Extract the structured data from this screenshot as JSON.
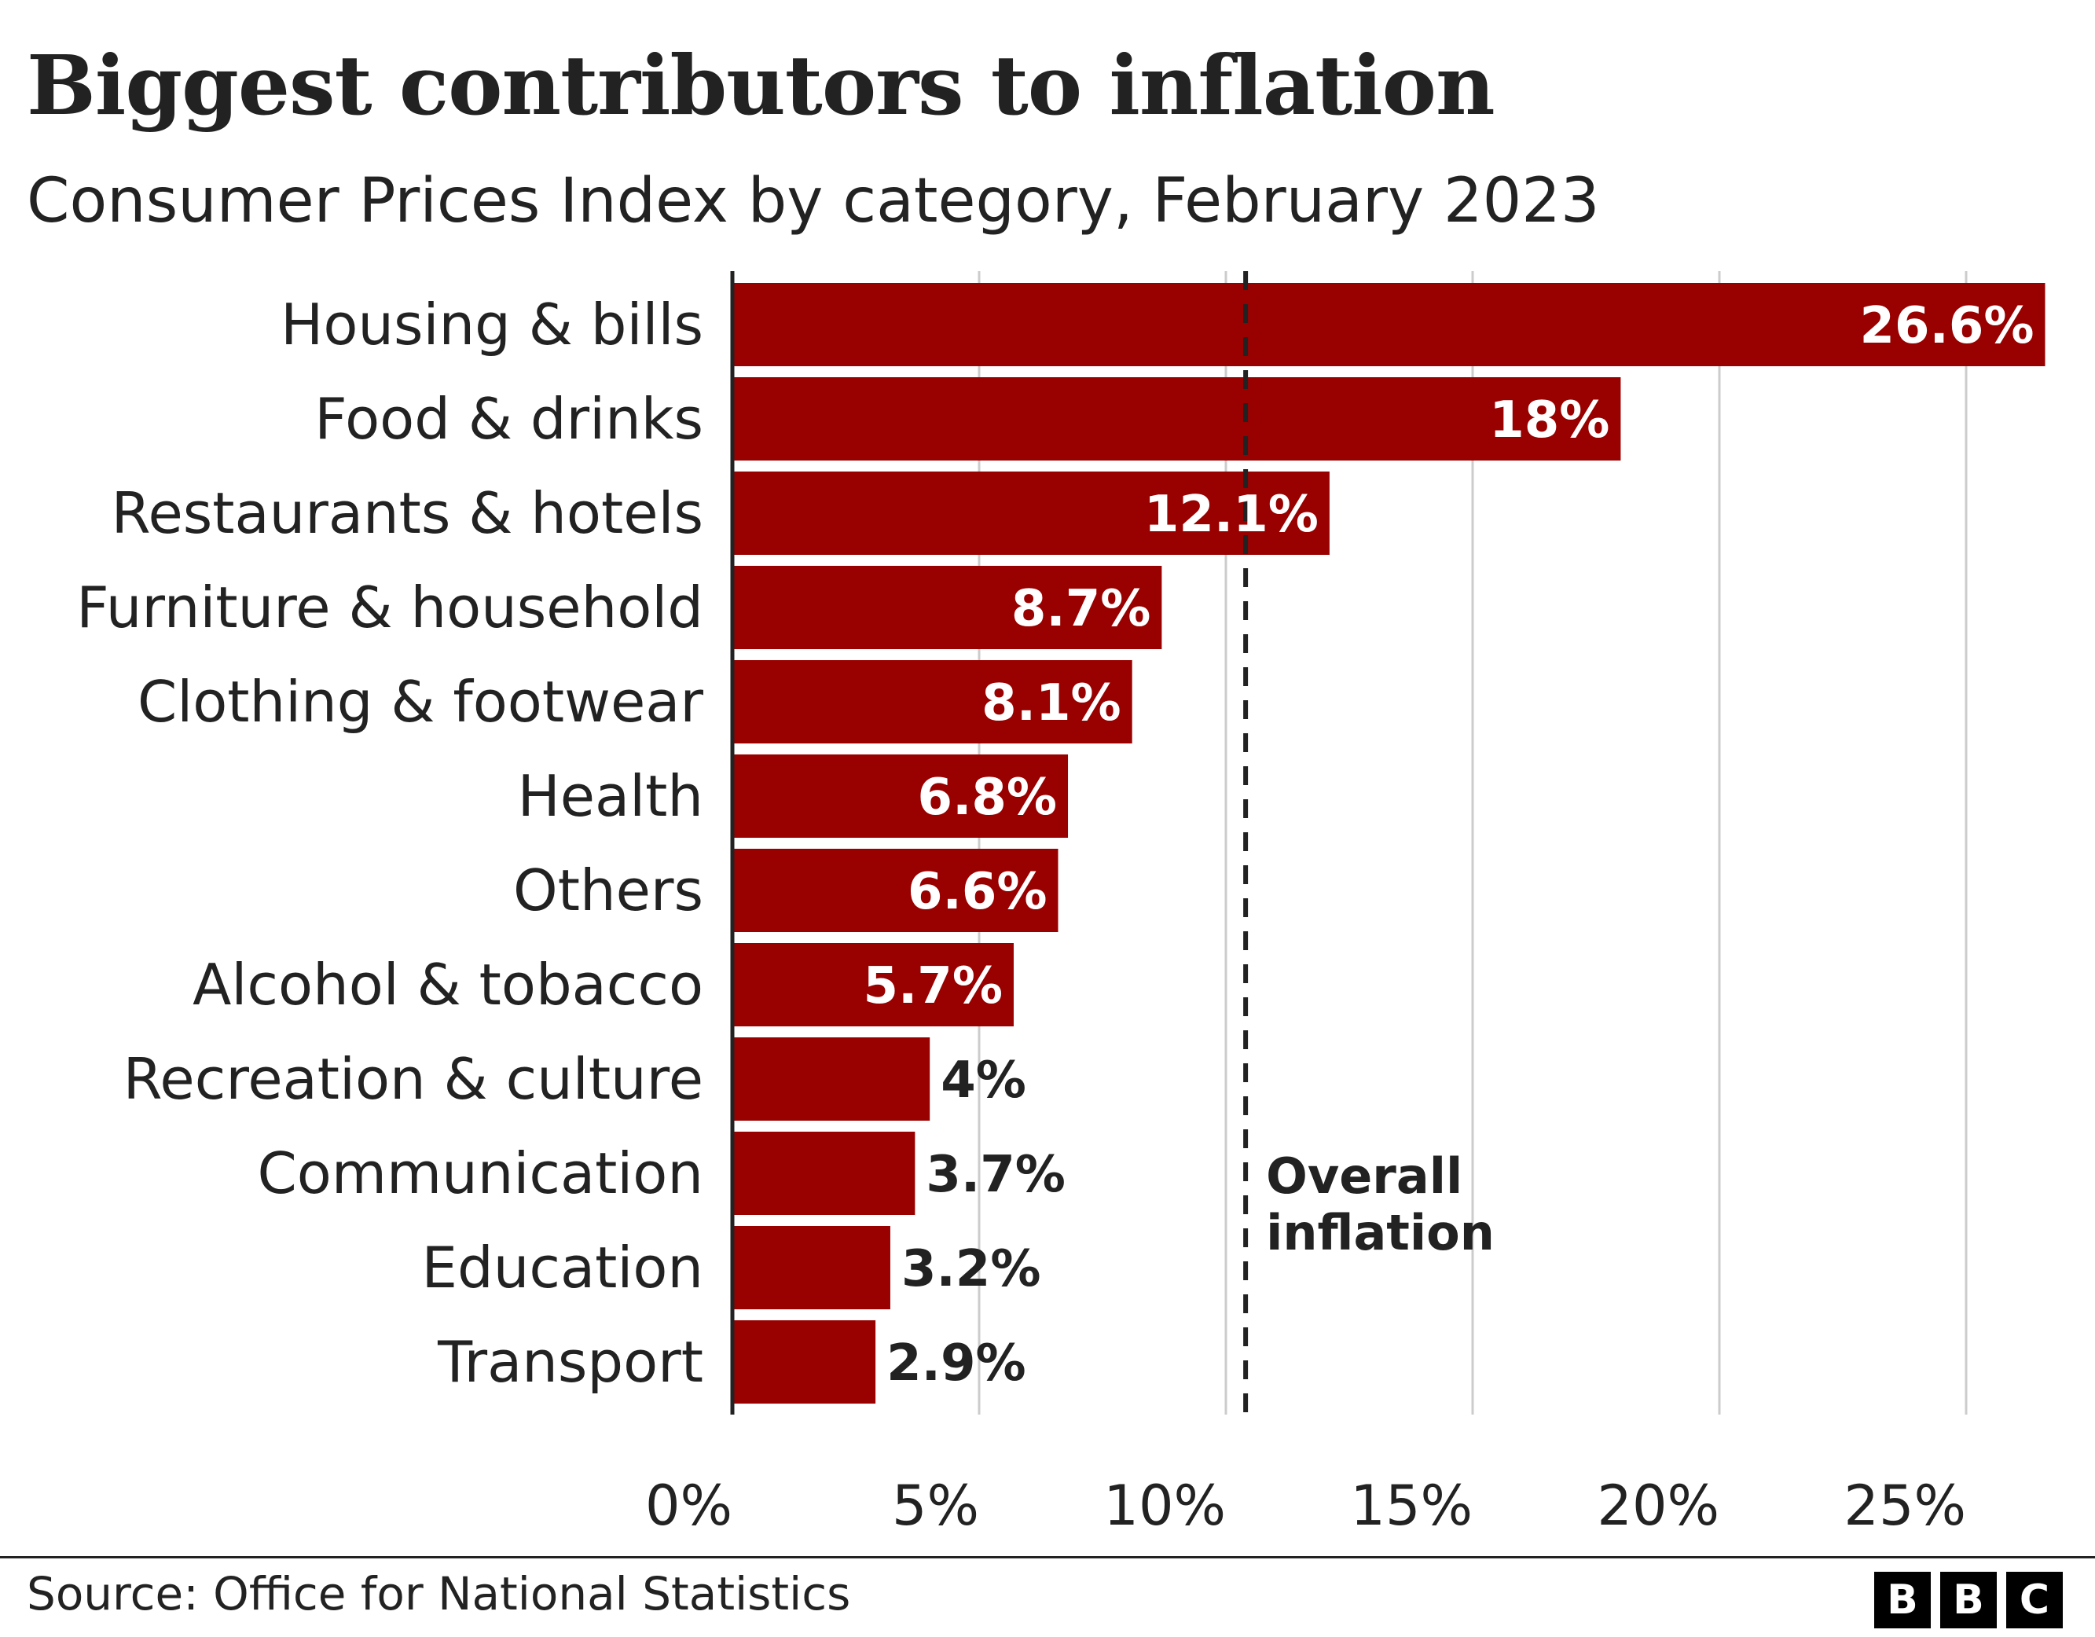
{
  "title": "Biggest contributors to inflation",
  "subtitle": "Consumer Prices Index by category, February 2023",
  "source": "Source: Office for National Statistics",
  "logo": [
    "B",
    "B",
    "C"
  ],
  "colors": {
    "bar": "#990000",
    "text": "#222222",
    "grid": "#cccccc",
    "label_inside": "#ffffff"
  },
  "chart_data": {
    "type": "bar",
    "orientation": "horizontal",
    "categories": [
      "Housing & bills",
      "Food & drinks",
      "Restaurants & hotels",
      "Furniture & household",
      "Clothing & footwear",
      "Health",
      "Others",
      "Alcohol & tobacco",
      "Recreation & culture",
      "Communication",
      "Education",
      "Transport"
    ],
    "values": [
      26.6,
      18,
      12.1,
      8.7,
      8.1,
      6.8,
      6.6,
      5.7,
      4,
      3.7,
      3.2,
      2.9
    ],
    "value_labels": [
      "26.6%",
      "18%",
      "12.1%",
      "8.7%",
      "8.1%",
      "6.8%",
      "6.6%",
      "5.7%",
      "4%",
      "3.7%",
      "3.2%",
      "2.9%"
    ],
    "xlim": [
      0,
      27.5
    ],
    "x_ticks": [
      0,
      5,
      10,
      15,
      20,
      25
    ],
    "x_tick_labels": [
      "0%",
      "5%",
      "10%",
      "15%",
      "20%",
      "25%"
    ],
    "grid": true,
    "reference_line": {
      "value": 10.4,
      "label_lines": [
        "Overall",
        "inflation"
      ]
    }
  }
}
